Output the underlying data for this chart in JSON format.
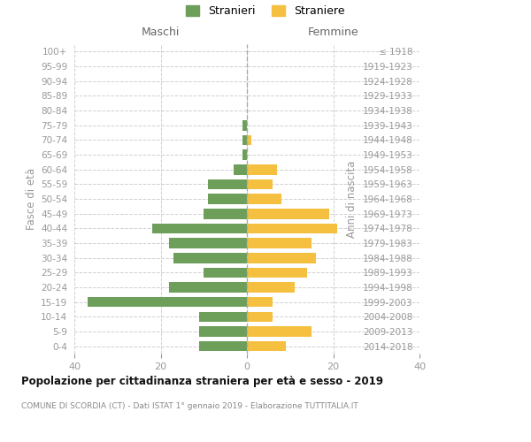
{
  "age_groups": [
    "100+",
    "95-99",
    "90-94",
    "85-89",
    "80-84",
    "75-79",
    "70-74",
    "65-69",
    "60-64",
    "55-59",
    "50-54",
    "45-49",
    "40-44",
    "35-39",
    "30-34",
    "25-29",
    "20-24",
    "15-19",
    "10-14",
    "5-9",
    "0-4"
  ],
  "birth_years": [
    "≤ 1918",
    "1919-1923",
    "1924-1928",
    "1929-1933",
    "1934-1938",
    "1939-1943",
    "1944-1948",
    "1949-1953",
    "1954-1958",
    "1959-1963",
    "1964-1968",
    "1969-1973",
    "1974-1978",
    "1979-1983",
    "1984-1988",
    "1989-1993",
    "1994-1998",
    "1999-2003",
    "2004-2008",
    "2009-2013",
    "2014-2018"
  ],
  "maschi": [
    0,
    0,
    0,
    0,
    0,
    1,
    1,
    1,
    3,
    9,
    9,
    10,
    22,
    18,
    17,
    10,
    18,
    37,
    11,
    11,
    11
  ],
  "femmine": [
    0,
    0,
    0,
    0,
    0,
    0,
    1,
    0,
    7,
    6,
    8,
    19,
    21,
    15,
    16,
    14,
    11,
    6,
    6,
    15,
    9
  ],
  "color_maschi": "#6d9e5a",
  "color_femmine": "#f5c040",
  "title": "Popolazione per cittadinanza straniera per età e sesso - 2019",
  "subtitle": "COMUNE DI SCORDIA (CT) - Dati ISTAT 1° gennaio 2019 - Elaborazione TUTTITALIA.IT",
  "label_maschi": "Maschi",
  "label_femmine": "Femmine",
  "ylabel_left": "Fasce di età",
  "ylabel_right": "Anni di nascita",
  "legend_stranieri": "Stranieri",
  "legend_straniere": "Straniere",
  "xlim": 40,
  "xticks": [
    -40,
    -20,
    0,
    20,
    40
  ],
  "background_color": "#ffffff",
  "grid_color": "#d0d0d0",
  "bar_height": 0.7,
  "text_color_dark": "#444444",
  "text_color_mid": "#666666",
  "text_color_light": "#999999"
}
